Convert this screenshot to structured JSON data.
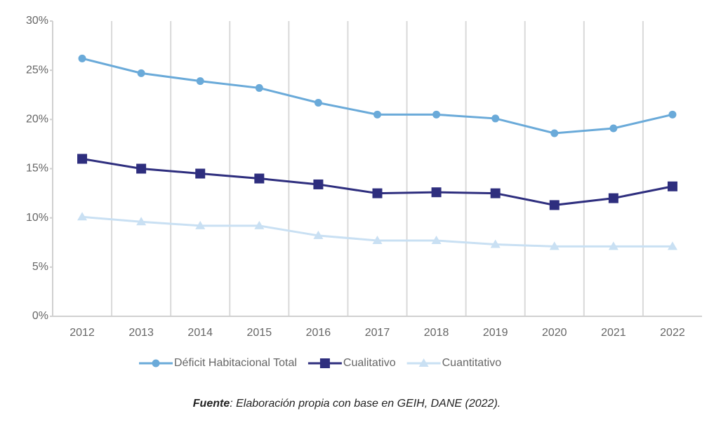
{
  "chart_data": {
    "type": "line",
    "categories": [
      "2012",
      "2013",
      "2014",
      "2015",
      "2016",
      "2017",
      "2018",
      "2019",
      "2020",
      "2021",
      "2022"
    ],
    "series": [
      {
        "name": "Déficit Habitacional Total",
        "color": "#6aaad9",
        "marker": "circle",
        "values": [
          26.2,
          24.7,
          23.9,
          23.2,
          21.7,
          20.5,
          20.5,
          20.1,
          18.6,
          19.1,
          20.5
        ]
      },
      {
        "name": "Cualitativo",
        "color": "#2e2e7e",
        "marker": "square",
        "values": [
          16.0,
          15.0,
          14.5,
          14.0,
          13.4,
          12.5,
          12.6,
          12.5,
          11.3,
          12.0,
          13.2
        ]
      },
      {
        "name": "Cuantitativo",
        "color": "#c9e0f3",
        "marker": "triangle",
        "values": [
          10.1,
          9.6,
          9.2,
          9.2,
          8.2,
          7.7,
          7.7,
          7.3,
          7.1,
          7.1,
          7.1
        ]
      }
    ],
    "ylim": [
      0,
      30
    ],
    "yticks": [
      {
        "value": 0,
        "label": "0%"
      },
      {
        "value": 5,
        "label": "5%"
      },
      {
        "value": 10,
        "label": "10%"
      },
      {
        "value": 15,
        "label": "15%"
      },
      {
        "value": 20,
        "label": "20%"
      },
      {
        "value": 25,
        "label": "25%"
      },
      {
        "value": 30,
        "label": "30%"
      }
    ],
    "grid": true,
    "legend": "bottom",
    "source_label": "Fuente",
    "source_text": ": Elaboración propia con base en GEIH, DANE (2022)."
  }
}
